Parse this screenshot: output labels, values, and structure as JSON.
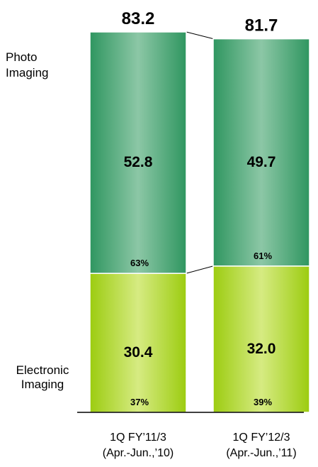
{
  "chart_data": {
    "type": "bar",
    "stacked": true,
    "categories": [
      [
        "1Q FY’11/3",
        "(Apr.-Jun.,’10)"
      ],
      [
        "1Q FY’12/3",
        "(Apr.-Jun.,’11)"
      ]
    ],
    "totals": [
      "83.2",
      "81.7"
    ],
    "series": [
      {
        "name": [
          "Electronic",
          "Imaging"
        ],
        "values": [
          30.4,
          32.0
        ],
        "value_labels": [
          "30.4",
          "32.0"
        ],
        "shares": [
          "37%",
          "39%"
        ],
        "color_edge": "#9ccc10",
        "color_center": "#d6eb82"
      },
      {
        "name": [
          "Photo",
          "Imaging"
        ],
        "values": [
          52.8,
          49.7
        ],
        "value_labels": [
          "52.8",
          "49.7"
        ],
        "shares": [
          "63%",
          "61%"
        ],
        "color_edge": "#2f9660",
        "color_center": "#8cc7a6"
      }
    ],
    "ylim": [
      0,
      83.2
    ],
    "grid": false,
    "legend": "left"
  }
}
